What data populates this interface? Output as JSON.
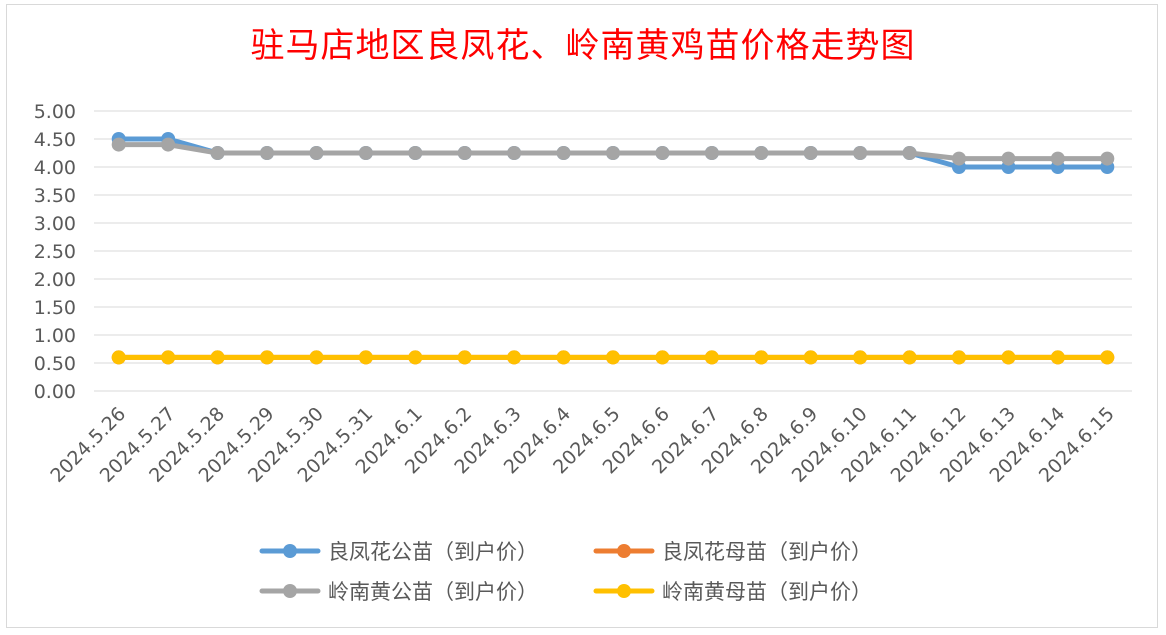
{
  "chart_data": {
    "type": "line",
    "title": "驻马店地区良凤花、岭南黄鸡苗价格走势图",
    "x": [
      "2024.5.26",
      "2024.5.27",
      "2024.5.28",
      "2024.5.29",
      "2024.5.30",
      "2024.5.31",
      "2024.6.1",
      "2024.6.2",
      "2024.6.3",
      "2024.6.4",
      "2024.6.5",
      "2024.6.6",
      "2024.6.7",
      "2024.6.8",
      "2024.6.9",
      "2024.6.10",
      "2024.6.11",
      "2024.6.12",
      "2024.6.13",
      "2024.6.14",
      "2024.6.15"
    ],
    "y_ticks": [
      "0.00",
      "0.50",
      "1.00",
      "1.50",
      "2.00",
      "2.50",
      "3.00",
      "3.50",
      "4.00",
      "4.50",
      "5.00"
    ],
    "ylim": [
      0,
      5
    ],
    "grid": true,
    "legend_position": "bottom",
    "series": [
      {
        "name": "良凤花公苗（到户价）",
        "color": "#5b9bd5",
        "values": [
          4.5,
          4.5,
          4.25,
          4.25,
          4.25,
          4.25,
          4.25,
          4.25,
          4.25,
          4.25,
          4.25,
          4.25,
          4.25,
          4.25,
          4.25,
          4.25,
          4.25,
          4.0,
          4.0,
          4.0,
          4.0
        ]
      },
      {
        "name": "良凤花母苗（到户价）",
        "color": "#ed7d31",
        "values": [
          0.6,
          0.6,
          0.6,
          0.6,
          0.6,
          0.6,
          0.6,
          0.6,
          0.6,
          0.6,
          0.6,
          0.6,
          0.6,
          0.6,
          0.6,
          0.6,
          0.6,
          0.6,
          0.6,
          0.6,
          0.6
        ]
      },
      {
        "name": "岭南黄公苗（到户价）",
        "color": "#a5a5a5",
        "values": [
          4.4,
          4.4,
          4.25,
          4.25,
          4.25,
          4.25,
          4.25,
          4.25,
          4.25,
          4.25,
          4.25,
          4.25,
          4.25,
          4.25,
          4.25,
          4.25,
          4.25,
          4.15,
          4.15,
          4.15,
          4.15
        ]
      },
      {
        "name": "岭南黄母苗（到户价）",
        "color": "#ffc000",
        "values": [
          0.6,
          0.6,
          0.6,
          0.6,
          0.6,
          0.6,
          0.6,
          0.6,
          0.6,
          0.6,
          0.6,
          0.6,
          0.6,
          0.6,
          0.6,
          0.6,
          0.6,
          0.6,
          0.6,
          0.6,
          0.6
        ]
      }
    ]
  }
}
